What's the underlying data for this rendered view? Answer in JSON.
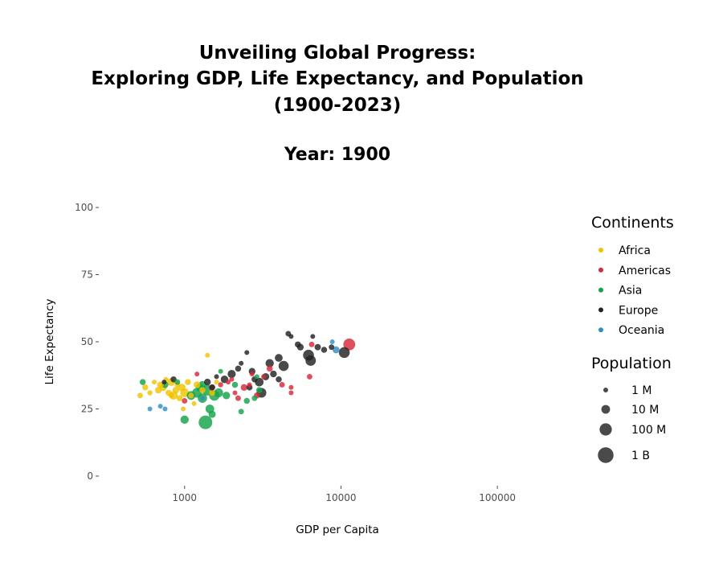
{
  "chart_data": {
    "type": "scatter",
    "title_lines": [
      "Unveiling Global Progress:",
      "Exploring GDP, Life Expectancy, and Population",
      "(1900-2023)"
    ],
    "subtitle": "Year: 1900",
    "xlabel": "GDP per Capita",
    "ylabel": "Life Expectancy",
    "x_scale": "log10",
    "xlim": [
      300,
      300000
    ],
    "ylim": [
      0,
      100
    ],
    "x_ticks": [
      1000,
      10000,
      100000
    ],
    "x_tick_labels": [
      "1000",
      "10000",
      "100000"
    ],
    "y_ticks": [
      0,
      25,
      50,
      75,
      100
    ],
    "y_tick_labels": [
      "0",
      "25",
      "50",
      "75",
      "100"
    ],
    "grid": false,
    "legend_position": "right",
    "color_legend": {
      "title": "Continents",
      "entries": [
        {
          "label": "Africa",
          "color": "#F2C200"
        },
        {
          "label": "Americas",
          "color": "#D62839"
        },
        {
          "label": "Asia",
          "color": "#14A34A"
        },
        {
          "label": "Europe",
          "color": "#222222"
        },
        {
          "label": "Oceania",
          "color": "#2E8FC7"
        }
      ]
    },
    "size_legend": {
      "title": "Population",
      "entries": [
        {
          "label": "1 M",
          "population": 1000000
        },
        {
          "label": "10 M",
          "population": 10000000
        },
        {
          "label": "100 M",
          "population": 100000000
        },
        {
          "label": "1 B",
          "population": 1000000000
        }
      ]
    },
    "series": [
      {
        "name": "Africa",
        "points": [
          {
            "x": 520,
            "y": 30,
            "pop": 1500000
          },
          {
            "x": 560,
            "y": 33,
            "pop": 2000000
          },
          {
            "x": 600,
            "y": 31,
            "pop": 1200000
          },
          {
            "x": 640,
            "y": 35,
            "pop": 900000
          },
          {
            "x": 680,
            "y": 32,
            "pop": 3000000
          },
          {
            "x": 700,
            "y": 34,
            "pop": 2500000
          },
          {
            "x": 730,
            "y": 33,
            "pop": 4000000
          },
          {
            "x": 760,
            "y": 36,
            "pop": 1000000
          },
          {
            "x": 790,
            "y": 31,
            "pop": 2000000
          },
          {
            "x": 820,
            "y": 35,
            "pop": 6000000
          },
          {
            "x": 850,
            "y": 30,
            "pop": 8000000
          },
          {
            "x": 880,
            "y": 32,
            "pop": 3000000
          },
          {
            "x": 900,
            "y": 34,
            "pop": 1500000
          },
          {
            "x": 930,
            "y": 29,
            "pop": 2000000
          },
          {
            "x": 960,
            "y": 33,
            "pop": 5000000
          },
          {
            "x": 1000,
            "y": 31,
            "pop": 10000000
          },
          {
            "x": 1050,
            "y": 35,
            "pop": 2000000
          },
          {
            "x": 1100,
            "y": 30,
            "pop": 1500000
          },
          {
            "x": 1150,
            "y": 27,
            "pop": 1000000
          },
          {
            "x": 1200,
            "y": 34,
            "pop": 3000000
          },
          {
            "x": 1300,
            "y": 32,
            "pop": 2000000
          },
          {
            "x": 1400,
            "y": 45,
            "pop": 1000000
          },
          {
            "x": 1500,
            "y": 31,
            "pop": 2000000
          },
          {
            "x": 1600,
            "y": 35,
            "pop": 1000000
          },
          {
            "x": 980,
            "y": 25,
            "pop": 1000000
          },
          {
            "x": 820,
            "y": 30,
            "pop": 1200000
          }
        ]
      },
      {
        "name": "Americas",
        "points": [
          {
            "x": 1000,
            "y": 28,
            "pop": 1500000
          },
          {
            "x": 1200,
            "y": 38,
            "pop": 1000000
          },
          {
            "x": 1500,
            "y": 33,
            "pop": 2000000
          },
          {
            "x": 1700,
            "y": 34,
            "pop": 1200000
          },
          {
            "x": 2000,
            "y": 36,
            "pop": 1000000
          },
          {
            "x": 2200,
            "y": 29,
            "pop": 1500000
          },
          {
            "x": 2400,
            "y": 33,
            "pop": 3000000
          },
          {
            "x": 2600,
            "y": 34,
            "pop": 1000000
          },
          {
            "x": 2900,
            "y": 30,
            "pop": 2000000
          },
          {
            "x": 3200,
            "y": 37,
            "pop": 1000000
          },
          {
            "x": 3500,
            "y": 40,
            "pop": 2000000
          },
          {
            "x": 4200,
            "y": 34,
            "pop": 1500000
          },
          {
            "x": 4800,
            "y": 33,
            "pop": 1000000
          },
          {
            "x": 4800,
            "y": 31,
            "pop": 1000000
          },
          {
            "x": 6300,
            "y": 37,
            "pop": 1500000
          },
          {
            "x": 6500,
            "y": 49,
            "pop": 1500000
          },
          {
            "x": 11300,
            "y": 49,
            "pop": 76000000
          },
          {
            "x": 1900,
            "y": 35,
            "pop": 1000000
          },
          {
            "x": 2100,
            "y": 31,
            "pop": 1000000
          },
          {
            "x": 2700,
            "y": 38,
            "pop": 1000000
          }
        ]
      },
      {
        "name": "Asia",
        "points": [
          {
            "x": 540,
            "y": 35,
            "pop": 2000000
          },
          {
            "x": 750,
            "y": 34,
            "pop": 3000000
          },
          {
            "x": 900,
            "y": 35,
            "pop": 1500000
          },
          {
            "x": 1000,
            "y": 21,
            "pop": 8000000
          },
          {
            "x": 1100,
            "y": 30,
            "pop": 10000000
          },
          {
            "x": 1200,
            "y": 31,
            "pop": 20000000
          },
          {
            "x": 1250,
            "y": 33,
            "pop": 6000000
          },
          {
            "x": 1300,
            "y": 29,
            "pop": 15000000
          },
          {
            "x": 1360,
            "y": 20,
            "pop": 250000000
          },
          {
            "x": 1400,
            "y": 32,
            "pop": 40000000
          },
          {
            "x": 1450,
            "y": 25,
            "pop": 10000000
          },
          {
            "x": 1500,
            "y": 23,
            "pop": 4000000
          },
          {
            "x": 1550,
            "y": 30,
            "pop": 30000000
          },
          {
            "x": 1650,
            "y": 31,
            "pop": 12000000
          },
          {
            "x": 1700,
            "y": 39,
            "pop": 1000000
          },
          {
            "x": 1850,
            "y": 30,
            "pop": 5000000
          },
          {
            "x": 2100,
            "y": 34,
            "pop": 2000000
          },
          {
            "x": 2300,
            "y": 24,
            "pop": 1500000
          },
          {
            "x": 2500,
            "y": 28,
            "pop": 2000000
          },
          {
            "x": 2800,
            "y": 29,
            "pop": 1500000
          },
          {
            "x": 2900,
            "y": 37,
            "pop": 1000000
          },
          {
            "x": 3000,
            "y": 32,
            "pop": 2000000
          },
          {
            "x": 1300,
            "y": 34,
            "pop": 5000000
          }
        ]
      },
      {
        "name": "Europe",
        "points": [
          {
            "x": 740,
            "y": 35,
            "pop": 1000000
          },
          {
            "x": 850,
            "y": 36,
            "pop": 2000000
          },
          {
            "x": 1400,
            "y": 35,
            "pop": 3000000
          },
          {
            "x": 1500,
            "y": 33,
            "pop": 2000000
          },
          {
            "x": 1600,
            "y": 37,
            "pop": 1000000
          },
          {
            "x": 1800,
            "y": 36,
            "pop": 5000000
          },
          {
            "x": 2000,
            "y": 38,
            "pop": 7000000
          },
          {
            "x": 2200,
            "y": 40,
            "pop": 2000000
          },
          {
            "x": 2300,
            "y": 42,
            "pop": 1000000
          },
          {
            "x": 2500,
            "y": 46,
            "pop": 1000000
          },
          {
            "x": 2700,
            "y": 39,
            "pop": 3000000
          },
          {
            "x": 2800,
            "y": 36,
            "pop": 2000000
          },
          {
            "x": 3000,
            "y": 35,
            "pop": 10000000
          },
          {
            "x": 3100,
            "y": 31,
            "pop": 20000000
          },
          {
            "x": 3300,
            "y": 37,
            "pop": 4000000
          },
          {
            "x": 3500,
            "y": 42,
            "pop": 8000000
          },
          {
            "x": 3700,
            "y": 38,
            "pop": 3000000
          },
          {
            "x": 4000,
            "y": 44,
            "pop": 6000000
          },
          {
            "x": 4300,
            "y": 41,
            "pop": 25000000
          },
          {
            "x": 4600,
            "y": 53,
            "pop": 1500000
          },
          {
            "x": 4800,
            "y": 52,
            "pop": 1000000
          },
          {
            "x": 5300,
            "y": 49,
            "pop": 2000000
          },
          {
            "x": 5500,
            "y": 48,
            "pop": 3000000
          },
          {
            "x": 6200,
            "y": 45,
            "pop": 40000000
          },
          {
            "x": 6400,
            "y": 43,
            "pop": 30000000
          },
          {
            "x": 6600,
            "y": 52,
            "pop": 1000000
          },
          {
            "x": 7100,
            "y": 48,
            "pop": 2500000
          },
          {
            "x": 7800,
            "y": 47,
            "pop": 2000000
          },
          {
            "x": 8700,
            "y": 48,
            "pop": 1500000
          },
          {
            "x": 10500,
            "y": 46,
            "pop": 40000000
          },
          {
            "x": 4000,
            "y": 36,
            "pop": 2000000
          },
          {
            "x": 2600,
            "y": 33,
            "pop": 2000000
          }
        ]
      },
      {
        "name": "Oceania",
        "points": [
          {
            "x": 600,
            "y": 25,
            "pop": 1000000
          },
          {
            "x": 700,
            "y": 26,
            "pop": 1000000
          },
          {
            "x": 750,
            "y": 25,
            "pop": 1000000
          },
          {
            "x": 1300,
            "y": 29,
            "pop": 1000000
          },
          {
            "x": 8800,
            "y": 50,
            "pop": 1000000
          },
          {
            "x": 9300,
            "y": 47,
            "pop": 3500000
          }
        ]
      }
    ]
  }
}
